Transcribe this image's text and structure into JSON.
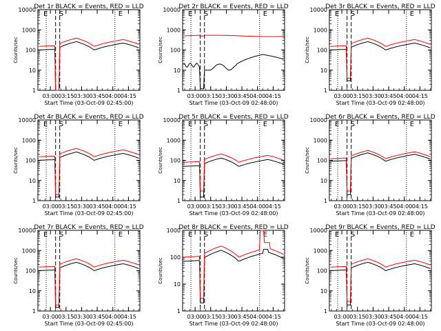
{
  "chart_data": [
    {
      "type": "line",
      "title": "Det 1r BLACK = Events, RED = LLD",
      "xlabel": "Start Time (03-Oct-09 02:45:00)",
      "ylabel": "Counts/sec",
      "y_scale": "log",
      "ylim": [
        1,
        10000
      ],
      "x_ticks": [
        "03:00",
        "03:15",
        "03:30",
        "03:45",
        "04:00",
        "04:15"
      ],
      "y_ticks": [
        "1",
        "10",
        "100",
        "1000",
        "10000"
      ],
      "markers": [
        "E",
        "S",
        "E"
      ],
      "series": [
        {
          "name": "Events",
          "color": "#000000",
          "shape": "typical",
          "base": 100,
          "gap_min": 0.2
        },
        {
          "name": "LLD",
          "color": "#ff0000",
          "shape": "typical",
          "base": 150,
          "gap_min": 1
        }
      ]
    },
    {
      "type": "line",
      "title": "Det 2r BLACK = Events, RED = LLD",
      "xlabel": "Start Time (03-Oct-09 02:48:00)",
      "ylabel": "Counts/sec",
      "y_scale": "log",
      "ylim": [
        1,
        10000
      ],
      "x_ticks": [
        "03:00",
        "03:15",
        "03:30",
        "03:45",
        "04:00",
        "04:15"
      ],
      "y_ticks": [
        "1",
        "10",
        "100",
        "1000",
        "10000"
      ],
      "markers": [
        "E",
        "S",
        "E"
      ],
      "series": [
        {
          "name": "Events",
          "color": "#000000",
          "shape": "det2_black",
          "base": 20,
          "gap_min": 1.2
        },
        {
          "name": "LLD",
          "color": "#ff0000",
          "shape": "flat",
          "base": 500,
          "gap_min": 500
        }
      ]
    },
    {
      "type": "line",
      "title": "Det 3r BLACK = Events, RED = LLD",
      "xlabel": "Start Time (03-Oct-09 02:48:00)",
      "ylabel": "Counts/sec",
      "y_scale": "log",
      "ylim": [
        1,
        10000
      ],
      "x_ticks": [
        "03:00",
        "03:15",
        "03:30",
        "03:45",
        "04:00",
        "04:15"
      ],
      "y_ticks": [
        "1",
        "10",
        "100",
        "1000",
        "10000"
      ],
      "markers": [
        "E",
        "S",
        "E"
      ],
      "series": [
        {
          "name": "Events",
          "color": "#000000",
          "shape": "typical",
          "base": 100,
          "gap_min": 3
        },
        {
          "name": "LLD",
          "color": "#ff0000",
          "shape": "typical",
          "base": 150,
          "gap_min": 4
        }
      ]
    },
    {
      "type": "line",
      "title": "Det 4r BLACK = Events, RED = LLD",
      "xlabel": "Start Time (03-Oct-09 02:45:00)",
      "ylabel": "Counts/sec",
      "y_scale": "log",
      "ylim": [
        1,
        10000
      ],
      "x_ticks": [
        "03:00",
        "03:15",
        "03:30",
        "03:45",
        "04:00",
        "04:15"
      ],
      "y_ticks": [
        "1",
        "10",
        "100",
        "1000",
        "10000"
      ],
      "markers": [
        "E",
        "S",
        "E"
      ],
      "series": [
        {
          "name": "Events",
          "color": "#000000",
          "shape": "typical",
          "base": 100,
          "gap_min": 1.5
        },
        {
          "name": "LLD",
          "color": "#ff0000",
          "shape": "typical",
          "base": 150,
          "gap_min": 2
        }
      ]
    },
    {
      "type": "line",
      "title": "Det 5r BLACK = Events, RED = LLD",
      "xlabel": "Start Time (03-Oct-09 02:48:00)",
      "ylabel": "Counts/sec",
      "y_scale": "log",
      "ylim": [
        1,
        10000
      ],
      "x_ticks": [
        "03:00",
        "03:15",
        "03:30",
        "03:45",
        "04:00",
        "04:15"
      ],
      "y_ticks": [
        "1",
        "10",
        "100",
        "1000",
        "10000"
      ],
      "markers": [
        "E",
        "S",
        "E"
      ],
      "series": [
        {
          "name": "Events",
          "color": "#000000",
          "shape": "typical",
          "base": 50,
          "gap_min": 1.5
        },
        {
          "name": "LLD",
          "color": "#ff0000",
          "shape": "typical",
          "base": 80,
          "gap_min": 3
        }
      ]
    },
    {
      "type": "line",
      "title": "Det 6r BLACK = Events, RED = LLD",
      "xlabel": "Start Time (03-Oct-09 02:48:00)",
      "ylabel": "Counts/sec",
      "y_scale": "log",
      "ylim": [
        1,
        10000
      ],
      "x_ticks": [
        "03:00",
        "03:15",
        "03:30",
        "03:45",
        "04:00",
        "04:15"
      ],
      "y_ticks": [
        "1",
        "10",
        "100",
        "1000",
        "10000"
      ],
      "markers": [
        "E",
        "S",
        "E"
      ],
      "series": [
        {
          "name": "Events",
          "color": "#000000",
          "shape": "typical",
          "base": 90,
          "gap_min": 2
        },
        {
          "name": "LLD",
          "color": "#ff0000",
          "shape": "typical",
          "base": 120,
          "gap_min": 3
        }
      ]
    },
    {
      "type": "line",
      "title": "Det 7r BLACK = Events, RED = LLD",
      "xlabel": "Start Time (03-Oct-09 02:45:00)",
      "ylabel": "Counts/sec",
      "y_scale": "log",
      "ylim": [
        1,
        10000
      ],
      "x_ticks": [
        "03:00",
        "03:15",
        "03:30",
        "03:45",
        "04:00",
        "04:15"
      ],
      "y_ticks": [
        "1",
        "10",
        "100",
        "1000",
        "10000"
      ],
      "markers": [
        "E",
        "S",
        "E"
      ],
      "series": [
        {
          "name": "Events",
          "color": "#000000",
          "shape": "typical",
          "base": 100,
          "gap_min": 1.5
        },
        {
          "name": "LLD",
          "color": "#ff0000",
          "shape": "typical",
          "base": 150,
          "gap_min": 2
        }
      ]
    },
    {
      "type": "line",
      "title": "Det 8r BLACK = Events, RED = LLD",
      "xlabel": "Start Time (03-Oct-09 02:48:00)",
      "ylabel": "Counts/sec",
      "y_scale": "log",
      "ylim": [
        1,
        1000
      ],
      "x_ticks": [
        "03:00",
        "03:15",
        "03:30",
        "03:45",
        "04:00",
        "04:15"
      ],
      "y_ticks": [
        "1",
        "10",
        "100",
        "1000"
      ],
      "markers": [
        "E",
        "S",
        "E"
      ],
      "series": [
        {
          "name": "Events",
          "color": "#000000",
          "shape": "det8_black",
          "base": 70,
          "gap_min": 2
        },
        {
          "name": "LLD",
          "color": "#ff0000",
          "shape": "det8_red",
          "base": 100,
          "gap_min": 3
        }
      ]
    },
    {
      "type": "line",
      "title": "Det 9r BLACK = Events, RED = LLD",
      "xlabel": "Start Time (03-Oct-09 02:48:00)",
      "ylabel": "Counts/sec",
      "y_scale": "log",
      "ylim": [
        1,
        10000
      ],
      "x_ticks": [
        "03:00",
        "03:15",
        "03:30",
        "03:45",
        "04:00",
        "04:15"
      ],
      "y_ticks": [
        "1",
        "10",
        "100",
        "1000",
        "10000"
      ],
      "markers": [
        "E",
        "S",
        "E"
      ],
      "series": [
        {
          "name": "Events",
          "color": "#000000",
          "shape": "typical",
          "base": 100,
          "gap_min": 2
        },
        {
          "name": "LLD",
          "color": "#ff0000",
          "shape": "typical",
          "base": 150,
          "gap_min": 3
        }
      ]
    }
  ]
}
